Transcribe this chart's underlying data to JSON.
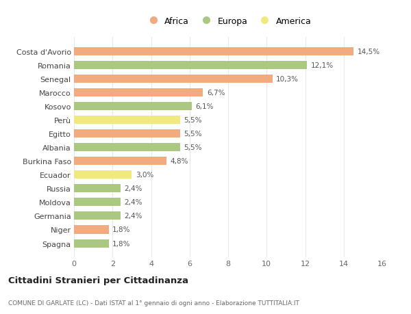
{
  "categories": [
    "Costa d'Avorio",
    "Romania",
    "Senegal",
    "Marocco",
    "Kosovo",
    "Perù",
    "Egitto",
    "Albania",
    "Burkina Faso",
    "Ecuador",
    "Russia",
    "Moldova",
    "Germania",
    "Niger",
    "Spagna"
  ],
  "values": [
    14.5,
    12.1,
    10.3,
    6.7,
    6.1,
    5.5,
    5.5,
    5.5,
    4.8,
    3.0,
    2.4,
    2.4,
    2.4,
    1.8,
    1.8
  ],
  "labels": [
    "14,5%",
    "12,1%",
    "10,3%",
    "6,7%",
    "6,1%",
    "5,5%",
    "5,5%",
    "5,5%",
    "4,8%",
    "3,0%",
    "2,4%",
    "2,4%",
    "2,4%",
    "1,8%",
    "1,8%"
  ],
  "colors": [
    "#F2AA80",
    "#AAC882",
    "#F2AA80",
    "#F2AA80",
    "#AAC882",
    "#F2E882",
    "#F2AA80",
    "#AAC882",
    "#F2AA80",
    "#F2E882",
    "#AAC882",
    "#AAC882",
    "#AAC882",
    "#F2AA80",
    "#AAC882"
  ],
  "africa_color": "#F2AA80",
  "europa_color": "#AAC882",
  "america_color": "#F2E882",
  "xlim": [
    0,
    16
  ],
  "xticks": [
    0,
    2,
    4,
    6,
    8,
    10,
    12,
    14,
    16
  ],
  "title": "Cittadini Stranieri per Cittadinanza",
  "subtitle": "COMUNE DI GARLATE (LC) - Dati ISTAT al 1° gennaio di ogni anno - Elaborazione TUTTITALIA.IT",
  "bg_color": "#ffffff",
  "grid_color": "#e8e8e8",
  "bar_height": 0.6
}
